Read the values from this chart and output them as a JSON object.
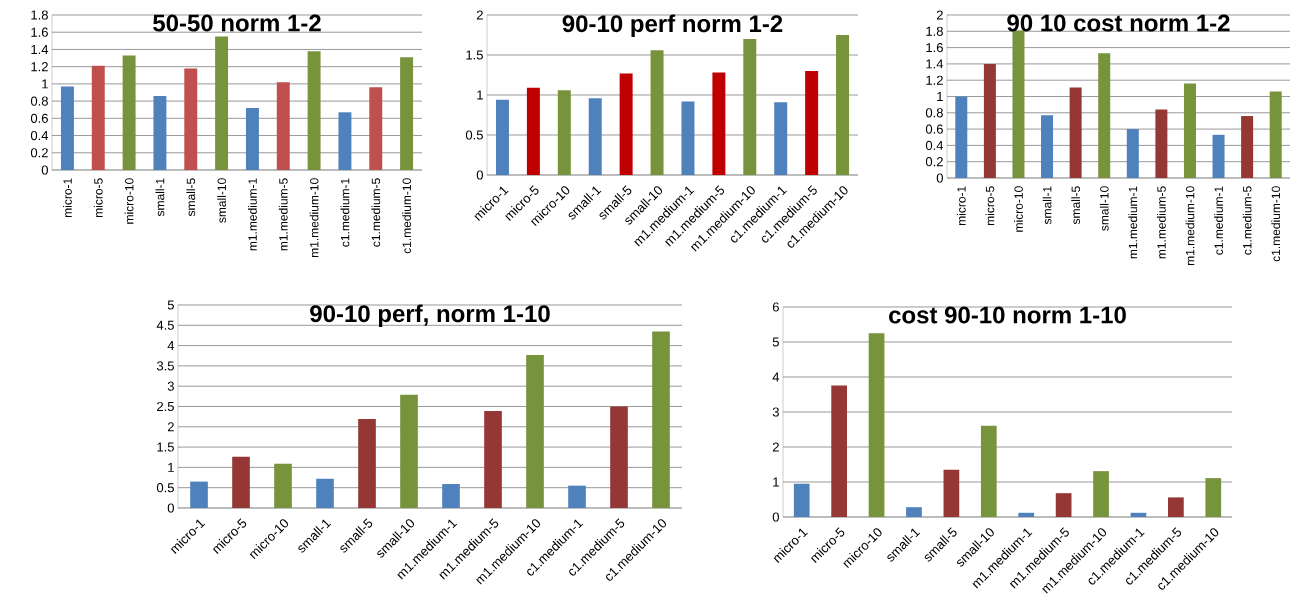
{
  "chart_data": [
    {
      "type": "bar",
      "title": "50-50 norm 1-2",
      "categories": [
        "micro-1",
        "micro-5",
        "micro-10",
        "small-1",
        "small-5",
        "small-10",
        "m1.medium-1",
        "m1.medium-5",
        "m1.medium-10",
        "c1.medium-1",
        "c1.medium-5",
        "c1.medium-10"
      ],
      "values": [
        0.97,
        1.21,
        1.33,
        0.86,
        1.18,
        1.55,
        0.72,
        1.02,
        1.38,
        0.67,
        0.96,
        1.31
      ],
      "colors": [
        "#4f81bd",
        "#c0504d",
        "#77933c",
        "#4f81bd",
        "#c0504d",
        "#77933c",
        "#4f81bd",
        "#c0504d",
        "#77933c",
        "#4f81bd",
        "#c0504d",
        "#77933c"
      ],
      "ylim": [
        0,
        1.8
      ],
      "yticks": [
        0,
        0.2,
        0.4,
        0.6,
        0.8,
        1,
        1.2,
        1.4,
        1.6,
        1.8
      ],
      "grid": "y"
    },
    {
      "type": "bar",
      "title": "90-10 perf norm 1-2",
      "categories": [
        "micro-1",
        "micro-5",
        "micro-10",
        "small-1",
        "small-5",
        "small-10",
        "m1.medium-1",
        "m1.medium-5",
        "m1.medium-10",
        "c1.medium-1",
        "c1.medium-5",
        "c1.medium-10"
      ],
      "values": [
        0.94,
        1.09,
        1.06,
        0.96,
        1.27,
        1.56,
        0.92,
        1.28,
        1.7,
        0.91,
        1.3,
        1.75
      ],
      "colors": [
        "#4f81bd",
        "#c00000",
        "#77933c",
        "#4f81bd",
        "#c00000",
        "#77933c",
        "#4f81bd",
        "#c00000",
        "#77933c",
        "#4f81bd",
        "#c00000",
        "#77933c"
      ],
      "ylim": [
        0,
        2
      ],
      "yticks": [
        0,
        0.5,
        1,
        1.5,
        2
      ],
      "grid": "y"
    },
    {
      "type": "bar",
      "title": "90 10 cost norm 1-2",
      "categories": [
        "micro-1",
        "micro-5",
        "micro-10",
        "small-1",
        "small-5",
        "small-10",
        "m1.medium-1",
        "m1.medium-5",
        "m1.medium-10",
        "c1.medium-1",
        "c1.medium-5",
        "c1.medium-10"
      ],
      "values": [
        1.0,
        1.4,
        1.81,
        0.77,
        1.11,
        1.53,
        0.6,
        0.84,
        1.16,
        0.53,
        0.76,
        1.06
      ],
      "colors": [
        "#4f81bd",
        "#953735",
        "#77933c",
        "#4f81bd",
        "#953735",
        "#77933c",
        "#4f81bd",
        "#953735",
        "#77933c",
        "#4f81bd",
        "#953735",
        "#77933c"
      ],
      "ylim": [
        0,
        2
      ],
      "yticks": [
        0,
        0.2,
        0.4,
        0.6,
        0.8,
        1,
        1.2,
        1.4,
        1.6,
        1.8,
        2
      ],
      "grid": "y"
    },
    {
      "type": "bar",
      "title": "90-10 perf, norm 1-10",
      "categories": [
        "micro-1",
        "micro-5",
        "micro-10",
        "small-1",
        "small-5",
        "small-10",
        "m1.medium-1",
        "m1.medium-5",
        "m1.medium-10",
        "c1.medium-1",
        "c1.medium-5",
        "c1.medium-10"
      ],
      "values": [
        0.65,
        1.26,
        1.09,
        0.72,
        2.19,
        2.79,
        0.59,
        2.39,
        3.77,
        0.55,
        2.5,
        4.35
      ],
      "colors": [
        "#4f81bd",
        "#953735",
        "#77933c",
        "#4f81bd",
        "#953735",
        "#77933c",
        "#4f81bd",
        "#953735",
        "#77933c",
        "#4f81bd",
        "#953735",
        "#77933c"
      ],
      "ylim": [
        0,
        5
      ],
      "yticks": [
        0,
        0.5,
        1,
        1.5,
        2,
        2.5,
        3,
        3.5,
        4,
        4.5,
        5
      ],
      "grid": "y"
    },
    {
      "type": "bar",
      "title": "cost 90-10 norm 1-10",
      "categories": [
        "micro-1",
        "micro-5",
        "micro-10",
        "small-1",
        "small-5",
        "small-10",
        "m1.medium-1",
        "m1.medium-5",
        "m1.medium-10",
        "c1.medium-1",
        "c1.medium-5",
        "c1.medium-10"
      ],
      "values": [
        0.95,
        3.76,
        5.25,
        0.28,
        1.35,
        2.61,
        0.12,
        0.68,
        1.31,
        0.12,
        0.56,
        1.11
      ],
      "colors": [
        "#4f81bd",
        "#953735",
        "#77933c",
        "#4f81bd",
        "#953735",
        "#77933c",
        "#4f81bd",
        "#953735",
        "#77933c",
        "#4f81bd",
        "#953735",
        "#77933c"
      ],
      "ylim": [
        0,
        6
      ],
      "yticks": [
        0,
        1,
        2,
        3,
        4,
        5,
        6
      ],
      "grid": "y"
    }
  ]
}
